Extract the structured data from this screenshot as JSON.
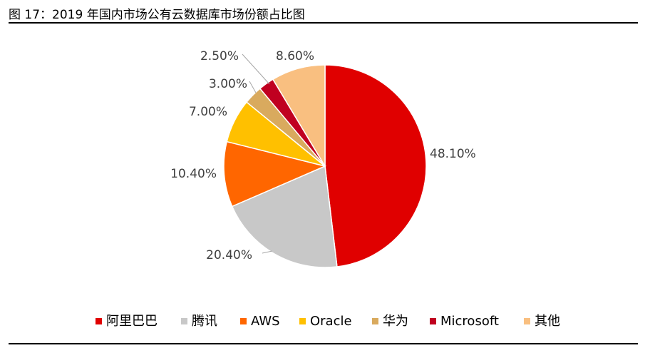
{
  "figure_title": "图 17：2019 年国内市场公有云数据库市场份额占比图",
  "colors": {
    "leader_line": "#a6a6a6",
    "slice_border": "#ffffff"
  },
  "chart_data": {
    "type": "pie",
    "title": "",
    "legend_position": "bottom",
    "start_angle_deg": 0,
    "direction": "clockwise",
    "slices": [
      {
        "name": "阿里巴巴",
        "value": 48.1,
        "label": "48.10%",
        "color": "#e00000"
      },
      {
        "name": "腾讯",
        "value": 20.4,
        "label": "20.40%",
        "color": "#c8c8c8"
      },
      {
        "name": "AWS",
        "value": 10.4,
        "label": "10.40%",
        "color": "#ff6600"
      },
      {
        "name": "Oracle",
        "value": 7.0,
        "label": "7.00%",
        "color": "#ffc000"
      },
      {
        "name": "华为",
        "value": 3.0,
        "label": "3.00%",
        "color": "#d9aa5e"
      },
      {
        "name": "Microsoft",
        "value": 2.5,
        "label": "2.50%",
        "color": "#c00020"
      },
      {
        "name": "其他",
        "value": 8.6,
        "label": "8.60%",
        "color": "#f9bf80"
      }
    ]
  }
}
